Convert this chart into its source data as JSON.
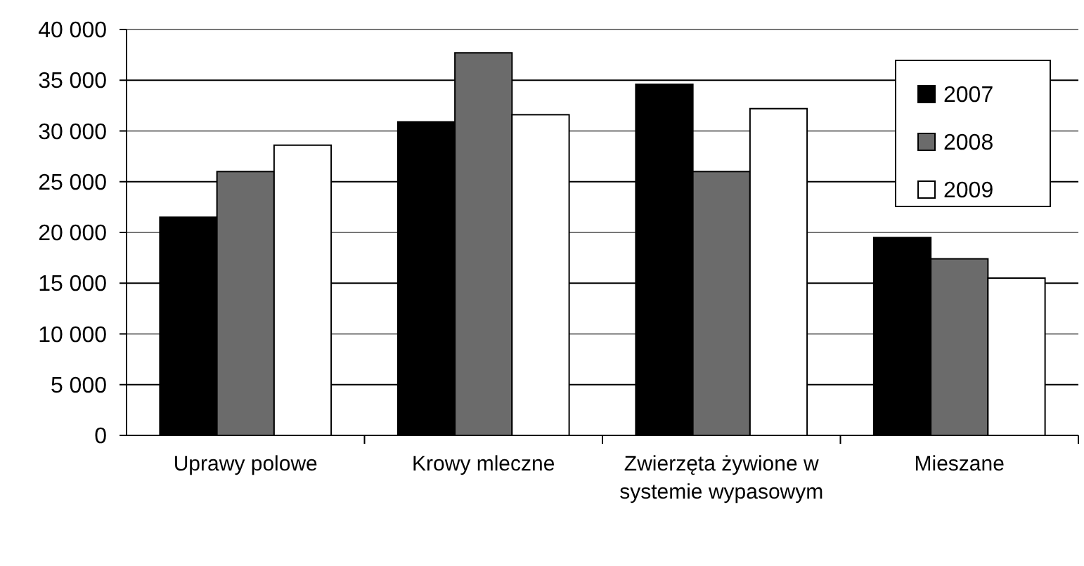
{
  "chart_data": {
    "type": "bar",
    "categories": [
      "Uprawy polowe",
      "Krowy mleczne",
      "Zwierzęta żywione w systemie wypasowym",
      "Mieszane"
    ],
    "series": [
      {
        "name": "2007",
        "color": "#000000",
        "values": [
          21500,
          30900,
          34600,
          19500
        ]
      },
      {
        "name": "2008",
        "color": "#6b6b6b",
        "values": [
          26000,
          37700,
          26000,
          17400
        ]
      },
      {
        "name": "2009",
        "color": "#ffffff",
        "values": [
          28600,
          31600,
          32200,
          15500
        ]
      }
    ],
    "ylim": [
      0,
      40000
    ],
    "yticks": [
      {
        "value": 0,
        "label": "0"
      },
      {
        "value": 5000,
        "label": "5 000"
      },
      {
        "value": 10000,
        "label": "10 000"
      },
      {
        "value": 15000,
        "label": "15 000"
      },
      {
        "value": 20000,
        "label": "20 000"
      },
      {
        "value": 25000,
        "label": "25 000"
      },
      {
        "value": 30000,
        "label": "30 000"
      },
      {
        "value": 35000,
        "label": "35 000"
      },
      {
        "value": 40000,
        "label": "40 000"
      }
    ],
    "grid": "y",
    "legend": "top right"
  }
}
